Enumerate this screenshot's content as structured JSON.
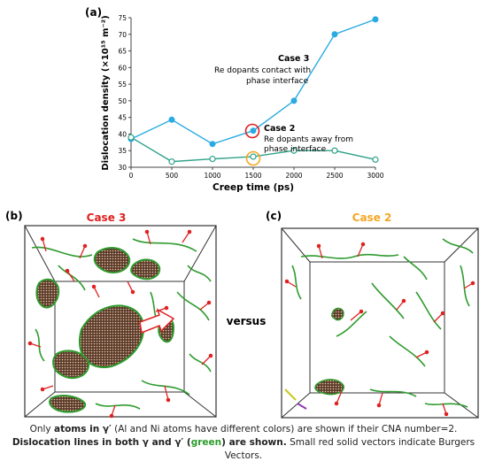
{
  "panel_a": {
    "label": "(a)",
    "chart_data": {
      "type": "line",
      "xlabel": "Creep time (ps)",
      "ylabel": "Dislocation density (×10¹⁵ m⁻²)",
      "xlim": [
        0,
        3000
      ],
      "ylim": [
        30,
        75
      ],
      "x_ticks": [
        "0",
        "500",
        "1000",
        "1500",
        "2000",
        "2500",
        "3000"
      ],
      "y_ticks": [
        "30",
        "35",
        "40",
        "45",
        "50",
        "55",
        "60",
        "65",
        "70",
        "75"
      ],
      "grid": false,
      "series": [
        {
          "key": "case3",
          "color": "#29abe2",
          "marker": "filled",
          "x": [
            0,
            500,
            1000,
            1500,
            2000,
            2500,
            3000
          ],
          "values": [
            38.5,
            44.3,
            37.0,
            41.0,
            50.0,
            70.0,
            74.5
          ]
        },
        {
          "key": "case2",
          "color": "#2fa28a",
          "marker": "open",
          "x": [
            0,
            500,
            1000,
            1500,
            2000,
            2500,
            3000
          ],
          "values": [
            39.0,
            31.7,
            32.5,
            33.2,
            35.0,
            35.0,
            32.3
          ]
        }
      ],
      "annotations": {
        "case3_title": "Case 3",
        "case3_line1": "Re dopants contact with",
        "case3_line2": "phase interface",
        "case2_title": "Case 2",
        "case2_line1": "Re dopants away from",
        "case2_line2": "phase interface",
        "circle_case3_color": "#e02020",
        "circle_case2_color": "#f5a623"
      }
    }
  },
  "panel_b": {
    "label": "(b)",
    "title": "Case 3",
    "title_color": "#e02020"
  },
  "panel_c": {
    "label": "(c)",
    "title": "Case 2",
    "title_color": "#f5a623"
  },
  "versus": "versus",
  "caption": {
    "line1_pre": "Only ",
    "line1_bold": "atoms in γ′",
    "line1_post": " (Al and Ni atoms have different colors) are shown if their CNA number=2.",
    "line2_bold1": "Dislocation lines in both γ and γ′ (",
    "line2_green": "green",
    "line2_bold2": ") are shown.",
    "line2_post": " Small red solid vectors indicate Burgers Vectors."
  }
}
